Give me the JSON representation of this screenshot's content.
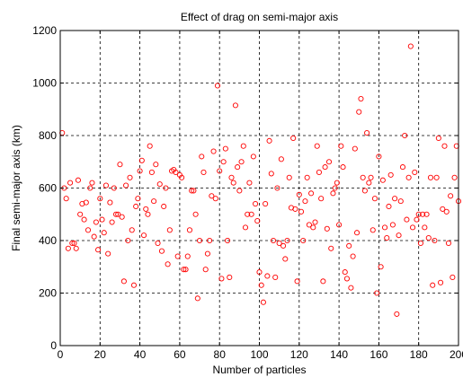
{
  "chart_data": {
    "type": "scatter",
    "title": "Effect of drag on semi-major axis",
    "xlabel": "Number of particles",
    "ylabel": "Final semi-major axis (km)",
    "xlim": [
      0,
      200
    ],
    "ylim": [
      0,
      1200
    ],
    "xticks": [
      "0",
      "20",
      "40",
      "60",
      "80",
      "100",
      "120",
      "140",
      "160",
      "180",
      "200"
    ],
    "yticks": [
      "0",
      "200",
      "400",
      "600",
      "800",
      "1000",
      "1200"
    ],
    "grid": true,
    "marker": "circle",
    "marker_color": "#ff0000",
    "points": [
      [
        1,
        810
      ],
      [
        2,
        600
      ],
      [
        3,
        560
      ],
      [
        4,
        370
      ],
      [
        5,
        620
      ],
      [
        6,
        390
      ],
      [
        7,
        390
      ],
      [
        8,
        370
      ],
      [
        9,
        630
      ],
      [
        10,
        500
      ],
      [
        11,
        540
      ],
      [
        12,
        480
      ],
      [
        13,
        545
      ],
      [
        14,
        440
      ],
      [
        15,
        600
      ],
      [
        16,
        620
      ],
      [
        17,
        415
      ],
      [
        18,
        470
      ],
      [
        19,
        365
      ],
      [
        20,
        560
      ],
      [
        21,
        480
      ],
      [
        22,
        430
      ],
      [
        23,
        610
      ],
      [
        24,
        350
      ],
      [
        25,
        545
      ],
      [
        26,
        470
      ],
      [
        27,
        600
      ],
      [
        28,
        500
      ],
      [
        29,
        500
      ],
      [
        30,
        690
      ],
      [
        31,
        490
      ],
      [
        32,
        245
      ],
      [
        33,
        610
      ],
      [
        34,
        400
      ],
      [
        35,
        640
      ],
      [
        36,
        440
      ],
      [
        37,
        230
      ],
      [
        38,
        530
      ],
      [
        39,
        560
      ],
      [
        40,
        665
      ],
      [
        41,
        705
      ],
      [
        42,
        420
      ],
      [
        43,
        520
      ],
      [
        44,
        500
      ],
      [
        45,
        760
      ],
      [
        46,
        660
      ],
      [
        47,
        550
      ],
      [
        48,
        690
      ],
      [
        49,
        390
      ],
      [
        50,
        615
      ],
      [
        51,
        360
      ],
      [
        52,
        530
      ],
      [
        53,
        600
      ],
      [
        54,
        310
      ],
      [
        55,
        440
      ],
      [
        56,
        665
      ],
      [
        57,
        670
      ],
      [
        58,
        660
      ],
      [
        59,
        340
      ],
      [
        60,
        650
      ],
      [
        61,
        640
      ],
      [
        62,
        290
      ],
      [
        63,
        290
      ],
      [
        64,
        340
      ],
      [
        65,
        440
      ],
      [
        66,
        590
      ],
      [
        67,
        590
      ],
      [
        68,
        500
      ],
      [
        69,
        180
      ],
      [
        70,
        400
      ],
      [
        71,
        720
      ],
      [
        72,
        660
      ],
      [
        73,
        290
      ],
      [
        74,
        350
      ],
      [
        75,
        400
      ],
      [
        76,
        570
      ],
      [
        77,
        740
      ],
      [
        78,
        560
      ],
      [
        79,
        990
      ],
      [
        80,
        665
      ],
      [
        81,
        255
      ],
      [
        82,
        700
      ],
      [
        83,
        750
      ],
      [
        84,
        400
      ],
      [
        85,
        260
      ],
      [
        86,
        640
      ],
      [
        87,
        620
      ],
      [
        88,
        915
      ],
      [
        89,
        680
      ],
      [
        90,
        590
      ],
      [
        91,
        700
      ],
      [
        92,
        760
      ],
      [
        93,
        450
      ],
      [
        94,
        500
      ],
      [
        95,
        620
      ],
      [
        96,
        500
      ],
      [
        97,
        720
      ],
      [
        98,
        540
      ],
      [
        99,
        475
      ],
      [
        100,
        280
      ],
      [
        101,
        230
      ],
      [
        102,
        165
      ],
      [
        103,
        540
      ],
      [
        104,
        265
      ],
      [
        105,
        780
      ],
      [
        106,
        655
      ],
      [
        107,
        400
      ],
      [
        108,
        260
      ],
      [
        109,
        600
      ],
      [
        110,
        390
      ],
      [
        111,
        710
      ],
      [
        112,
        380
      ],
      [
        113,
        330
      ],
      [
        114,
        400
      ],
      [
        115,
        640
      ],
      [
        116,
        525
      ],
      [
        117,
        790
      ],
      [
        118,
        520
      ],
      [
        119,
        245
      ],
      [
        120,
        575
      ],
      [
        121,
        510
      ],
      [
        122,
        400
      ],
      [
        123,
        550
      ],
      [
        124,
        640
      ],
      [
        125,
        460
      ],
      [
        126,
        580
      ],
      [
        127,
        450
      ],
      [
        128,
        470
      ],
      [
        129,
        760
      ],
      [
        130,
        660
      ],
      [
        131,
        560
      ],
      [
        132,
        245
      ],
      [
        133,
        680
      ],
      [
        134,
        445
      ],
      [
        135,
        700
      ],
      [
        136,
        370
      ],
      [
        137,
        580
      ],
      [
        138,
        600
      ],
      [
        139,
        620
      ],
      [
        140,
        460
      ],
      [
        141,
        760
      ],
      [
        142,
        680
      ],
      [
        143,
        280
      ],
      [
        144,
        255
      ],
      [
        145,
        380
      ],
      [
        146,
        220
      ],
      [
        147,
        340
      ],
      [
        148,
        750
      ],
      [
        149,
        430
      ],
      [
        150,
        890
      ],
      [
        151,
        940
      ],
      [
        152,
        640
      ],
      [
        153,
        590
      ],
      [
        154,
        810
      ],
      [
        155,
        620
      ],
      [
        156,
        640
      ],
      [
        157,
        440
      ],
      [
        158,
        560
      ],
      [
        159,
        200
      ],
      [
        160,
        720
      ],
      [
        161,
        300
      ],
      [
        162,
        630
      ],
      [
        163,
        450
      ],
      [
        164,
        410
      ],
      [
        165,
        530
      ],
      [
        166,
        650
      ],
      [
        167,
        460
      ],
      [
        168,
        560
      ],
      [
        169,
        120
      ],
      [
        170,
        420
      ],
      [
        171,
        550
      ],
      [
        172,
        680
      ],
      [
        173,
        800
      ],
      [
        174,
        480
      ],
      [
        175,
        640
      ],
      [
        176,
        1140
      ],
      [
        177,
        450
      ],
      [
        178,
        660
      ],
      [
        179,
        480
      ],
      [
        180,
        500
      ],
      [
        181,
        390
      ],
      [
        182,
        500
      ],
      [
        183,
        450
      ],
      [
        184,
        500
      ],
      [
        185,
        410
      ],
      [
        186,
        640
      ],
      [
        187,
        230
      ],
      [
        188,
        400
      ],
      [
        189,
        640
      ],
      [
        190,
        790
      ],
      [
        191,
        240
      ],
      [
        192,
        520
      ],
      [
        193,
        760
      ],
      [
        194,
        510
      ],
      [
        195,
        390
      ],
      [
        196,
        570
      ],
      [
        197,
        260
      ],
      [
        198,
        640
      ],
      [
        199,
        760
      ],
      [
        200,
        550
      ]
    ]
  }
}
